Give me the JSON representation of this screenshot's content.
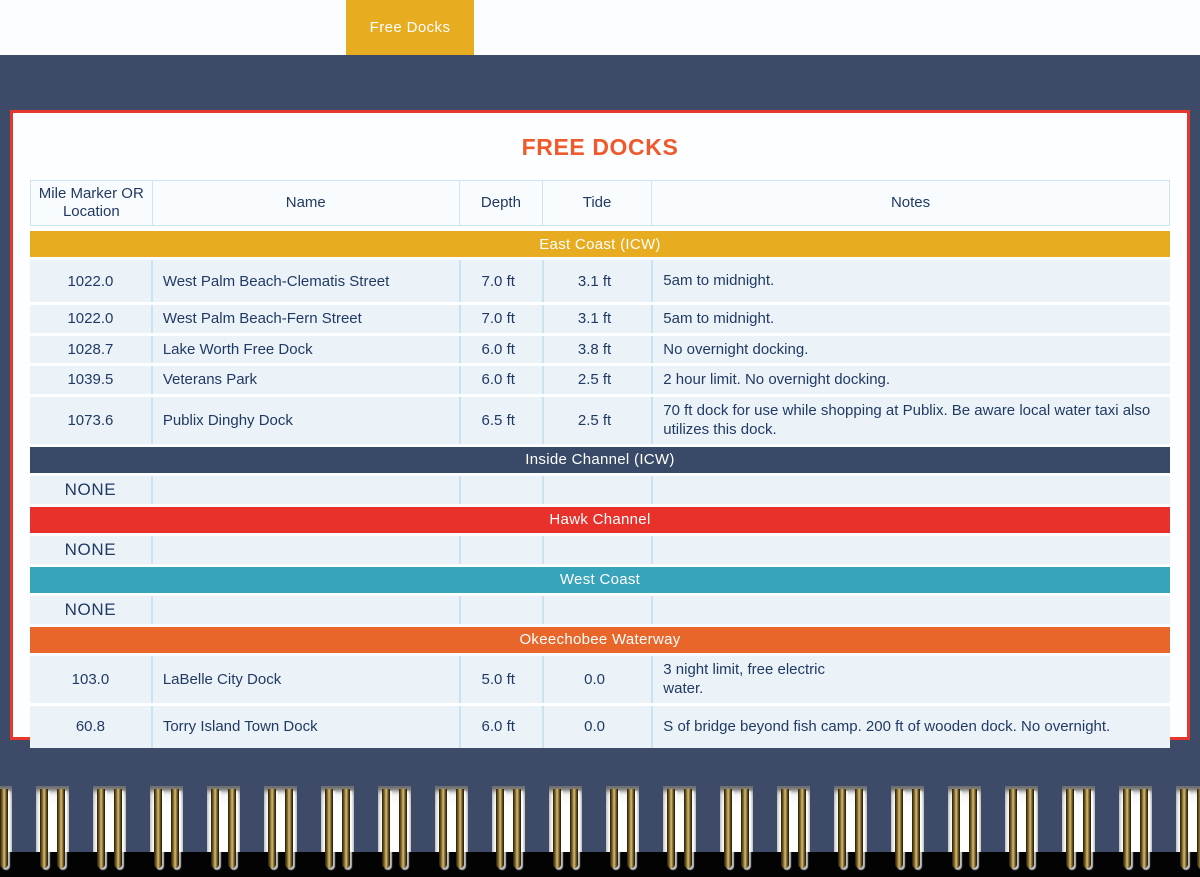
{
  "tab": {
    "label": "Free Docks",
    "color": "#E7AC1F"
  },
  "card": {
    "title": "FREE DOCKS",
    "title_color": "#F0592B",
    "border_color": "#E5372B"
  },
  "table": {
    "columns": [
      "Mile Marker OR Location",
      "Name",
      "Depth",
      "Tide",
      "Notes"
    ],
    "sections": [
      {
        "label": "East Coast (ICW)",
        "color": "#E7AC1F",
        "rows": [
          {
            "mile": "1022.0",
            "name": "West Palm Beach-Clematis Street",
            "depth": "7.0 ft",
            "tide": "3.1 ft",
            "notes": "5am to midnight.",
            "tall": true
          },
          {
            "mile": "1022.0",
            "name": "West Palm Beach-Fern Street",
            "depth": "7.0 ft",
            "tide": "3.1 ft",
            "notes": "5am to midnight."
          },
          {
            "mile": "1028.7",
            "name": "Lake Worth Free Dock",
            "depth": "6.0 ft",
            "tide": "3.8 ft",
            "notes": "No overnight docking."
          },
          {
            "mile": "1039.5",
            "name": "Veterans Park",
            "depth": "6.0 ft",
            "tide": "2.5 ft",
            "notes": "2 hour limit. No overnight docking."
          },
          {
            "mile": "1073.6",
            "name": "Publix Dinghy Dock",
            "depth": "6.5 ft",
            "tide": "2.5 ft",
            "notes": "70 ft dock for use while shopping at Publix. Be aware local water taxi also utilizes this dock.",
            "tall": true
          }
        ]
      },
      {
        "label": "Inside Channel (ICW)",
        "color": "#394A68",
        "rows": [
          {
            "mile": "NONE",
            "name": "",
            "depth": "",
            "tide": "",
            "notes": "",
            "none": true
          }
        ]
      },
      {
        "label": "Hawk Channel",
        "color": "#E8312B",
        "rows": [
          {
            "mile": "NONE",
            "name": "",
            "depth": "",
            "tide": "",
            "notes": "",
            "none": true
          }
        ]
      },
      {
        "label": "West Coast",
        "color": "#38A4BC",
        "rows": [
          {
            "mile": "NONE",
            "name": "",
            "depth": "",
            "tide": "",
            "notes": "",
            "none": true
          }
        ]
      },
      {
        "label": "Okeechobee Waterway",
        "color": "#E8662A",
        "rows": [
          {
            "mile": "103.0",
            "name": "LaBelle City Dock",
            "depth": "5.0 ft",
            "tide": "0.0",
            "notes": "3 night limit, free electric\nwater.",
            "tall": true
          },
          {
            "mile": "60.8",
            "name": "Torry Island Town Dock",
            "depth": "6.0 ft",
            "tide": "0.0",
            "notes": "S of bridge beyond fish camp. 200 ft of wooden dock. No overnight.",
            "tall": true
          }
        ]
      }
    ]
  }
}
